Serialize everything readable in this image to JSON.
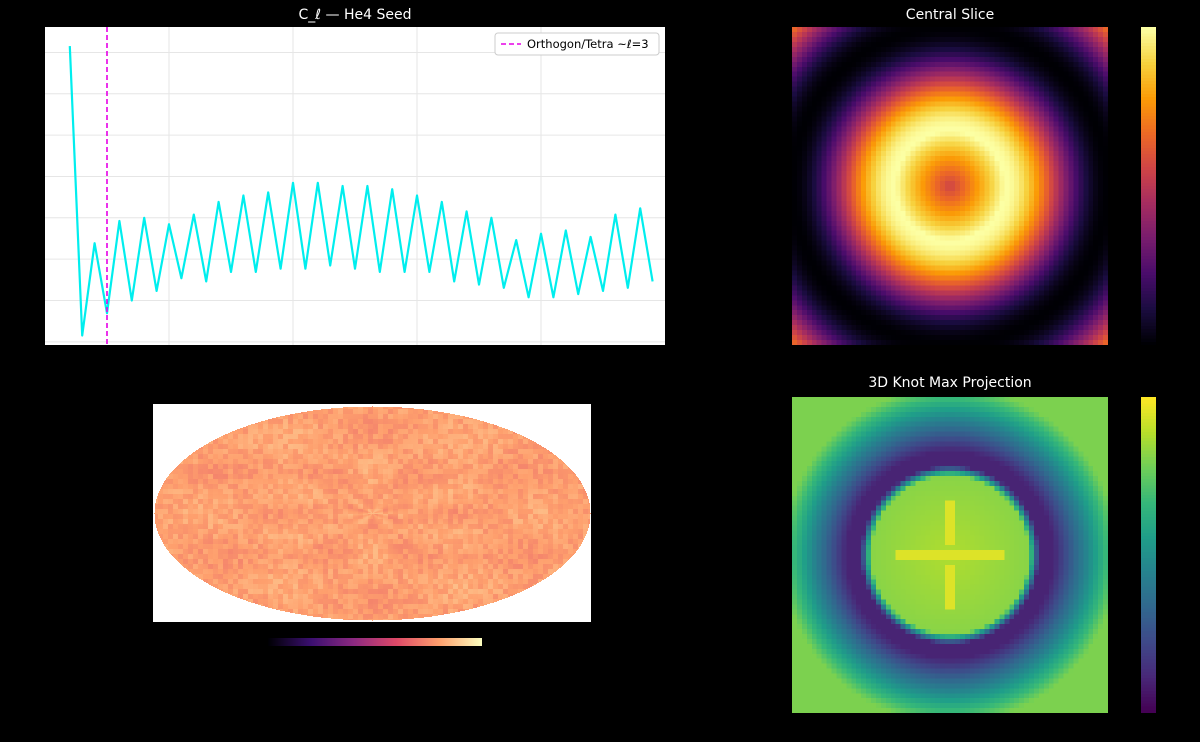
{
  "panels": {
    "spectrum": {
      "title": "C_ℓ  —  He4 Seed"
    },
    "slice": {
      "title": "Central Slice"
    },
    "knot": {
      "title": "3D Knot Max Projection"
    }
  },
  "colors": {
    "background": "#000000",
    "line": "#00eeee",
    "vline": "#e600e6",
    "grid": "#e6e6e6",
    "axes_face": "#ffffff"
  },
  "chart_data": [
    {
      "type": "line",
      "title": "C_ℓ  —  He4 Seed",
      "xlabel": "",
      "ylabel": "",
      "grid": true,
      "legend": "top-right",
      "xlim": [
        0,
        50
      ],
      "ylim": [
        0,
        1
      ],
      "series": [
        {
          "x": [
            2,
            3,
            4,
            5,
            6,
            7,
            8,
            9,
            10,
            11,
            12,
            13,
            14,
            15,
            16,
            17,
            18,
            19,
            20,
            21,
            22,
            23,
            24,
            25,
            26,
            27,
            28,
            29,
            30,
            31,
            32,
            33,
            34,
            35,
            36,
            37,
            38,
            39,
            40,
            41,
            42,
            43,
            44,
            45,
            46,
            47,
            48,
            49
          ],
          "values": [
            0.94,
            0.03,
            0.32,
            0.1,
            0.39,
            0.14,
            0.4,
            0.17,
            0.38,
            0.21,
            0.41,
            0.2,
            0.45,
            0.23,
            0.47,
            0.23,
            0.48,
            0.24,
            0.51,
            0.24,
            0.51,
            0.25,
            0.5,
            0.24,
            0.5,
            0.23,
            0.49,
            0.23,
            0.47,
            0.23,
            0.45,
            0.2,
            0.42,
            0.19,
            0.4,
            0.18,
            0.33,
            0.15,
            0.35,
            0.15,
            0.36,
            0.16,
            0.34,
            0.17,
            0.41,
            0.18,
            0.43,
            0.2
          ]
        }
      ],
      "vlines": [
        {
          "x": 5,
          "label": "Orthogon/Tetra ~ℓ=3"
        }
      ]
    },
    {
      "type": "heatmap",
      "title": "",
      "projection": "mollweide",
      "colormap": "inferno",
      "colorbar": "horizontal-bottom",
      "colorbar_stops": [
        "#000004",
        "#3b0f70",
        "#8c2981",
        "#de4968",
        "#fe9f6d",
        "#fcfdbf"
      ]
    },
    {
      "type": "heatmap",
      "title": "Central Slice",
      "colormap": "inferno",
      "colorbar": "right",
      "grid_size": 64,
      "colorbar_stops": [
        "#000004",
        "#1b0c41",
        "#4a0c6b",
        "#781c6d",
        "#a52c60",
        "#cf4446",
        "#ed6925",
        "#fb9b06",
        "#f7d13d",
        "#fcffa4"
      ]
    },
    {
      "type": "heatmap",
      "title": "3D Knot Max Projection",
      "colormap": "viridis",
      "colorbar": "right",
      "grid_size": 64,
      "colorbar_stops": [
        "#440154",
        "#482878",
        "#3e4989",
        "#31688e",
        "#26828e",
        "#1f9e89",
        "#35b779",
        "#6ece58",
        "#b5de2b",
        "#fde725"
      ]
    }
  ]
}
